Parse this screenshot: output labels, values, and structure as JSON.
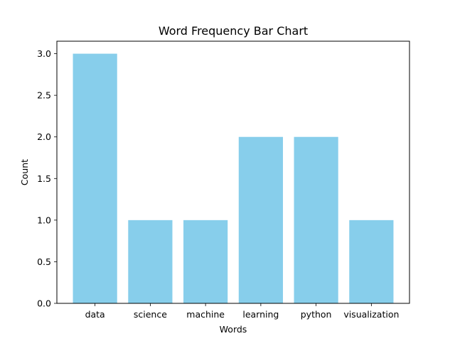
{
  "chart_data": {
    "type": "bar",
    "title": "Word Frequency Bar Chart",
    "xlabel": "Words",
    "ylabel": "Count",
    "categories": [
      "data",
      "science",
      "machine",
      "learning",
      "python",
      "visualization"
    ],
    "values": [
      3,
      1,
      1,
      2,
      2,
      1
    ],
    "ylim": [
      0,
      3.15
    ],
    "yticks": [
      "0.0",
      "0.5",
      "1.0",
      "1.5",
      "2.0",
      "2.5",
      "3.0"
    ],
    "bar_color": "#87CEEB",
    "grid": false,
    "legend": "none"
  }
}
